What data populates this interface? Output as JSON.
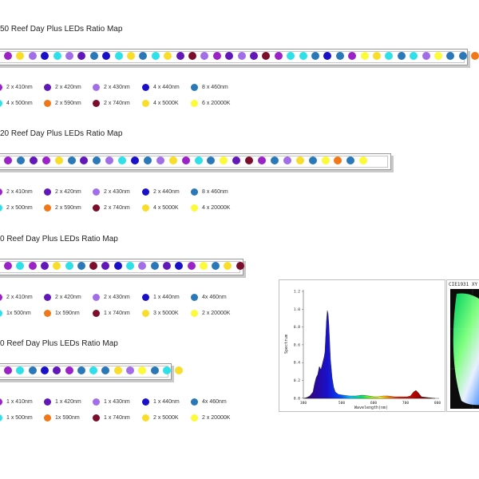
{
  "colors": {
    "410nm": "#9b22c6",
    "420nm": "#6218b8",
    "430nm": "#a26ee8",
    "440nm": "#1a10c8",
    "460nm": "#2a78b8",
    "500nm": "#2ee0e8",
    "590nm": "#f07818",
    "740nm": "#7a0e2c",
    "5000K": "#f8de2a",
    "20000K": "#fbfb3a"
  },
  "sections": [
    {
      "title": "50 Reef Day Plus LEDs Ratio Map",
      "strip": [
        "410nm",
        "5000K",
        "430nm",
        "440nm",
        "500nm",
        "430nm",
        "420nm",
        "460nm",
        "440nm",
        "500nm",
        "5000K",
        "460nm",
        "500nm",
        "5000K",
        "420nm",
        "740nm",
        "430nm",
        "410nm",
        "420nm",
        "430nm",
        "420nm",
        "740nm",
        "410nm",
        "500nm",
        "500nm",
        "460nm",
        "440nm",
        "460nm",
        "410nm",
        "20000K",
        "5000K",
        "500nm",
        "460nm",
        "500nm",
        "430nm",
        "20000K",
        "460nm",
        "460nm",
        "590nm",
        "20000K"
      ],
      "legend": [
        {
          "color": "410nm",
          "label": "2 x 410nm"
        },
        {
          "color": "420nm",
          "label": "2 x 420nm"
        },
        {
          "color": "430nm",
          "label": "2 x 430nm"
        },
        {
          "color": "440nm",
          "label": "4 x 440nm"
        },
        {
          "color": "460nm",
          "label": "8 x 460nm"
        },
        {
          "color": "500nm",
          "label": "4 x 500nm"
        },
        {
          "color": "590nm",
          "label": "2 x 590nm"
        },
        {
          "color": "740nm",
          "label": "2 x 740nm"
        },
        {
          "color": "5000K",
          "label": "4 x 5000K"
        },
        {
          "color": "20000K",
          "label": "6 x 20000K"
        }
      ]
    },
    {
      "title": "20 Reef Day Plus LEDs Ratio Map",
      "strip": [
        "410nm",
        "460nm",
        "420nm",
        "410nm",
        "5000K",
        "460nm",
        "420nm",
        "460nm",
        "430nm",
        "500nm",
        "440nm",
        "460nm",
        "430nm",
        "5000K",
        "410nm",
        "500nm",
        "460nm",
        "20000K",
        "420nm",
        "740nm",
        "410nm",
        "460nm",
        "430nm",
        "5000K",
        "460nm",
        "20000K",
        "590nm",
        "460nm",
        "20000K"
      ],
      "legend": [
        {
          "color": "410nm",
          "label": "2 x 410nm"
        },
        {
          "color": "420nm",
          "label": "2 x 420nm"
        },
        {
          "color": "430nm",
          "label": "2 x 430nm"
        },
        {
          "color": "440nm",
          "label": "2 x 440nm"
        },
        {
          "color": "460nm",
          "label": "8 x 460nm"
        },
        {
          "color": "500nm",
          "label": "2 x 500nm"
        },
        {
          "color": "590nm",
          "label": "2 x 590nm"
        },
        {
          "color": "740nm",
          "label": "2 x 740nm"
        },
        {
          "color": "5000K",
          "label": "4 x 5000K"
        },
        {
          "color": "20000K",
          "label": "4 x 20000K"
        }
      ]
    },
    {
      "title": "0 Reef Day Plus LEDs Ratio Map",
      "strip": [
        "410nm",
        "500nm",
        "410nm",
        "420nm",
        "5000K",
        "500nm",
        "460nm",
        "740nm",
        "420nm",
        "440nm",
        "500nm",
        "430nm",
        "460nm",
        "420nm",
        "440nm",
        "410nm",
        "20000K",
        "460nm",
        "5000K",
        "740nm"
      ],
      "legend": [
        {
          "color": "410nm",
          "label": "2 x 410nm"
        },
        {
          "color": "420nm",
          "label": "2 x 420nm"
        },
        {
          "color": "430nm",
          "label": "2 x 430nm"
        },
        {
          "color": "440nm",
          "label": "1 x 440nm"
        },
        {
          "color": "460nm",
          "label": "4x 460nm"
        },
        {
          "color": "500nm",
          "label": "1x 500nm"
        },
        {
          "color": "590nm",
          "label": "1x 590nm"
        },
        {
          "color": "740nm",
          "label": "1 x 740nm"
        },
        {
          "color": "5000K",
          "label": "3 x 5000K"
        },
        {
          "color": "20000K",
          "label": "2 x 20000K"
        }
      ]
    },
    {
      "title": "0 Reef Day Plus LEDs Ratio Map",
      "strip": [
        "410nm",
        "500nm",
        "460nm",
        "440nm",
        "420nm",
        "410nm",
        "460nm",
        "500nm",
        "460nm",
        "5000K",
        "430nm",
        "20000K",
        "460nm",
        "500nm",
        "5000K"
      ],
      "legend": [
        {
          "color": "410nm",
          "label": "1 x 410nm"
        },
        {
          "color": "420nm",
          "label": "1 x 420nm"
        },
        {
          "color": "430nm",
          "label": "1 x 430nm"
        },
        {
          "color": "440nm",
          "label": "1 x 440nm"
        },
        {
          "color": "460nm",
          "label": "4x 460nm"
        },
        {
          "color": "500nm",
          "label": "1 x 500nm"
        },
        {
          "color": "590nm",
          "label": "1x 590nm"
        },
        {
          "color": "740nm",
          "label": "1 x 740nm"
        },
        {
          "color": "5000K",
          "label": "2 x 5000K"
        },
        {
          "color": "20000K",
          "label": "2 x 20000K"
        }
      ]
    }
  ],
  "spectrum": {
    "ylabel": "Spectrum",
    "xlabel": "Wavelength(nm)",
    "y_ticks": [
      "1.2",
      "1.0",
      "0.8",
      "0.6",
      "0.4",
      "0.2",
      "0.0"
    ],
    "x_ticks": [
      "380",
      "500",
      "600",
      "700",
      "800"
    ]
  },
  "cie": {
    "header": "CIE1931 XY"
  }
}
